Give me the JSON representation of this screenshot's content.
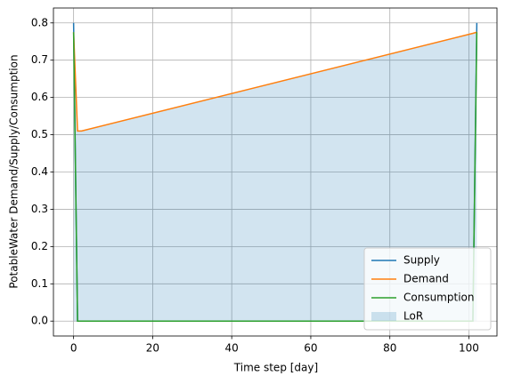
{
  "chart_data": {
    "type": "line",
    "x_label": "Time step [day]",
    "y_label": "PotableWater Demand/Supply/Consumption",
    "x": [
      0,
      1,
      2,
      101,
      102
    ],
    "series": [
      {
        "name": "Supply",
        "color": "#1f77b4",
        "values": [
          0.8,
          0,
          0,
          0,
          0.8
        ]
      },
      {
        "name": "Demand",
        "color": "#ff7f0e",
        "values": [
          0.775,
          0.51,
          0.51,
          0.772,
          0.775
        ]
      },
      {
        "name": "Consumption",
        "color": "#2ca02c",
        "values": [
          0.775,
          0,
          0,
          0,
          0.775
        ]
      }
    ],
    "areas": [
      {
        "name": "LoR",
        "color": "#1f77b4",
        "opacity": 0.2,
        "values": [
          0.8,
          0.51,
          0.51,
          0.772,
          0.775
        ]
      }
    ],
    "xlim": [
      -5.1,
      107.1
    ],
    "ylim": [
      -0.04,
      0.84
    ],
    "xticks": [
      0,
      20,
      40,
      60,
      80,
      100
    ],
    "yticks": [
      {
        "value": 0,
        "label": "0.0"
      },
      0.1,
      0.2,
      0.3,
      0.4,
      0.5,
      0.6,
      0.7,
      0.8
    ],
    "grid": true,
    "legend": "lower right"
  }
}
